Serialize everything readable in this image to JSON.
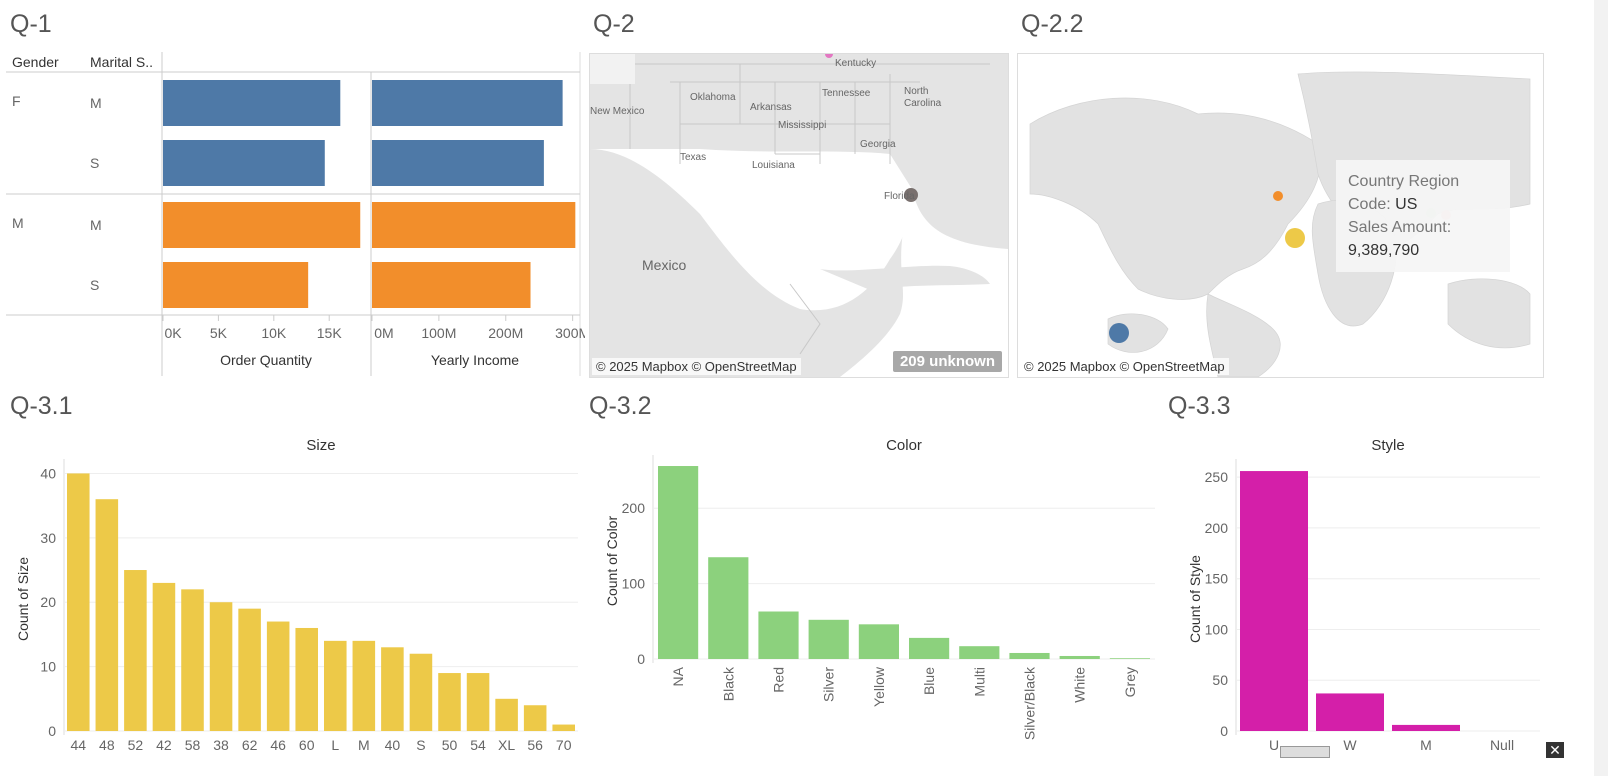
{
  "titles": {
    "q1": "Q-1",
    "q2": "Q-2",
    "q22": "Q-2.2",
    "q31": "Q-3.1",
    "q32": "Q-3.2",
    "q33": "Q-3.3"
  },
  "q1": {
    "header_gender": "Gender",
    "header_marital": "Marital S..",
    "rows": [
      {
        "gender": "F",
        "marital": "M",
        "order": 16000,
        "income": 285000000,
        "color": "#4e79a7"
      },
      {
        "gender": "",
        "marital": "S",
        "order": 14600,
        "income": 257000000,
        "color": "#4e79a7"
      },
      {
        "gender": "M",
        "marital": "M",
        "order": 17800,
        "income": 304000000,
        "color": "#f28e2b"
      },
      {
        "gender": "",
        "marital": "S",
        "order": 13100,
        "income": 237000000,
        "color": "#f28e2b"
      }
    ],
    "order_axis": {
      "label": "Order Quantity",
      "ticks": [
        "0K",
        "5K",
        "10K",
        "15K"
      ],
      "tick_values": [
        0,
        5000,
        10000,
        15000
      ],
      "max": 18500
    },
    "income_axis": {
      "label": "Yearly Income",
      "ticks": [
        "0M",
        "100M",
        "200M",
        "300M"
      ],
      "tick_values": [
        0,
        100000000,
        200000000,
        300000000
      ],
      "max": 308000000
    }
  },
  "q2": {
    "labels": [
      "Kentucky",
      "Oklahoma",
      "Tennessee",
      "North Carolina",
      "Arkansas",
      "New Mexico",
      "Mississippi",
      "Georgia",
      "Texas",
      "Louisiana",
      "Florida",
      "Mexico"
    ],
    "credit": "© 2025 Mapbox © OpenStreetMap",
    "unknown": "209 unknown"
  },
  "q22": {
    "credit": "© 2025 Mapbox © OpenStreetMap",
    "tooltip": {
      "line1": "Country Region",
      "code_label": "Code:",
      "code_value": "US",
      "amount_label": "Sales Amount:",
      "amount_value": "9,389,790"
    }
  },
  "chart_data": [
    {
      "type": "bar",
      "title": "Size",
      "xlabel": "",
      "ylabel": "Count of Size",
      "ylim": [
        0,
        41
      ],
      "yticks": [
        0,
        10,
        20,
        30,
        40
      ],
      "categories": [
        "44",
        "48",
        "52",
        "42",
        "58",
        "38",
        "62",
        "46",
        "60",
        "L",
        "M",
        "40",
        "S",
        "50",
        "54",
        "XL",
        "56",
        "70"
      ],
      "values": [
        40,
        36,
        25,
        23,
        22,
        20,
        19,
        17,
        16,
        14,
        14,
        13,
        12,
        9,
        9,
        5,
        4,
        1
      ],
      "color": "#edc948"
    },
    {
      "type": "bar",
      "title": "Color",
      "xlabel": "",
      "ylabel": "Count of Color",
      "ylim": [
        0,
        260
      ],
      "yticks": [
        0,
        100,
        200
      ],
      "categories": [
        "NA",
        "Black",
        "Red",
        "Silver",
        "Yellow",
        "Blue",
        "Multi",
        "Silver/Black",
        "White",
        "Grey"
      ],
      "values": [
        256,
        135,
        63,
        52,
        46,
        28,
        17,
        8,
        4,
        1
      ],
      "color": "#8cd17d"
    },
    {
      "type": "bar",
      "title": "Style",
      "xlabel": "",
      "ylabel": "Count of Style",
      "ylim": [
        0,
        260
      ],
      "yticks": [
        0,
        50,
        100,
        150,
        200,
        250
      ],
      "categories": [
        "U",
        "W",
        "M",
        "Null"
      ],
      "values": [
        256,
        37,
        6,
        0
      ],
      "color": "#d41fa9"
    }
  ]
}
